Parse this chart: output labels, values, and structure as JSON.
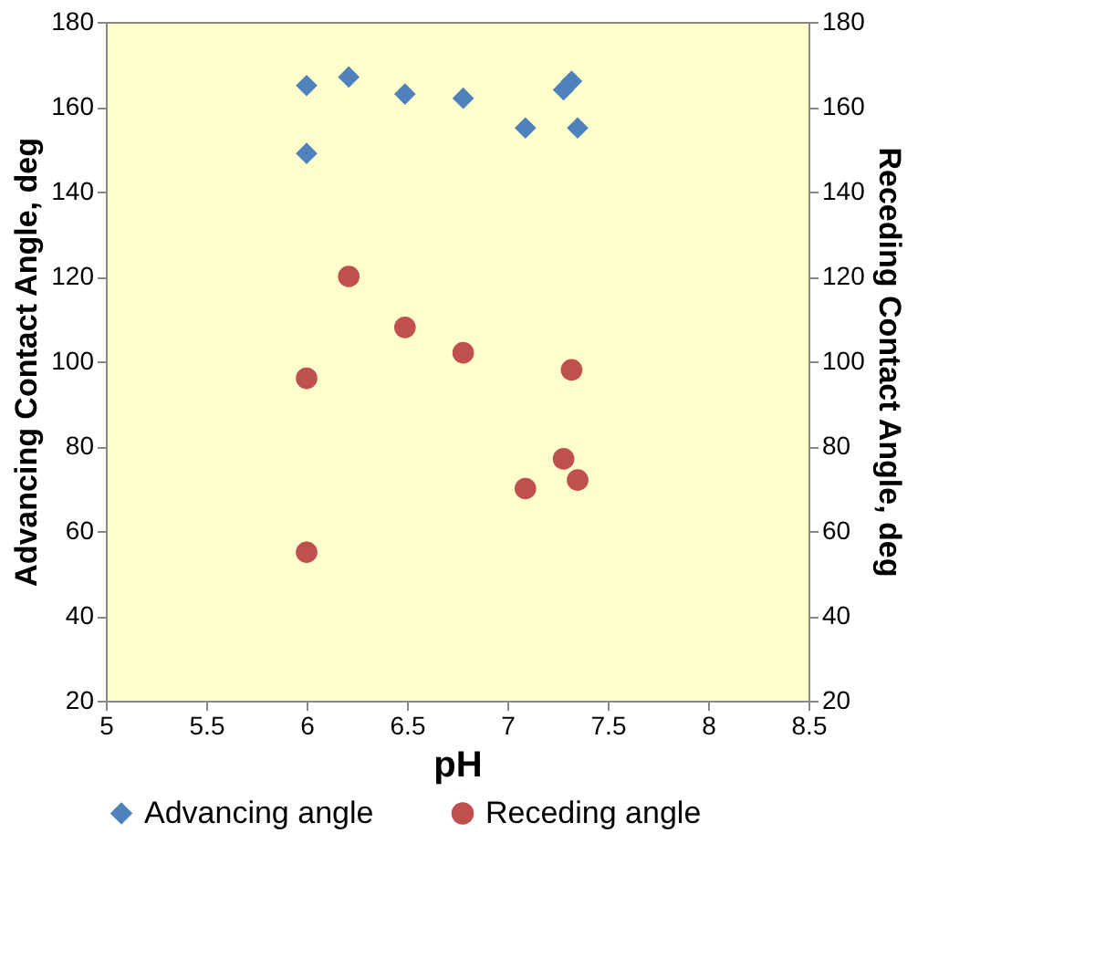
{
  "chart_data": {
    "type": "scatter",
    "xlabel": "pH",
    "ylabel": "Advancing Contact Angle, deg",
    "y2label": "Receding Contact Angle, deg",
    "xlim": [
      5,
      8.5
    ],
    "xticks": [
      5,
      5.5,
      6,
      6.5,
      7,
      7.5,
      8,
      8.5
    ],
    "ylim": [
      20,
      180
    ],
    "yticks": [
      20,
      40,
      60,
      80,
      100,
      120,
      140,
      160,
      180
    ],
    "y2lim": [
      20,
      180
    ],
    "y2ticks": [
      20,
      40,
      60,
      80,
      100,
      120,
      140,
      160,
      180
    ],
    "grid": false,
    "legend": "bottom",
    "series": [
      {
        "name": "Advancing angle",
        "color": "#4f81bd",
        "marker": "diamond",
        "x": [
          6.0,
          6.0,
          6.21,
          6.49,
          6.78,
          7.09,
          7.28,
          7.32,
          7.35
        ],
        "values": [
          165,
          149,
          167,
          163,
          162,
          155,
          164,
          166,
          155
        ]
      },
      {
        "name": "Receding angle",
        "color": "#c0504d",
        "marker": "circle",
        "axis": "y2",
        "x": [
          6.0,
          6.0,
          6.21,
          6.49,
          6.78,
          7.09,
          7.28,
          7.32,
          7.35
        ],
        "values": [
          96,
          55,
          120,
          108,
          102,
          70,
          77,
          98,
          72
        ]
      }
    ]
  }
}
